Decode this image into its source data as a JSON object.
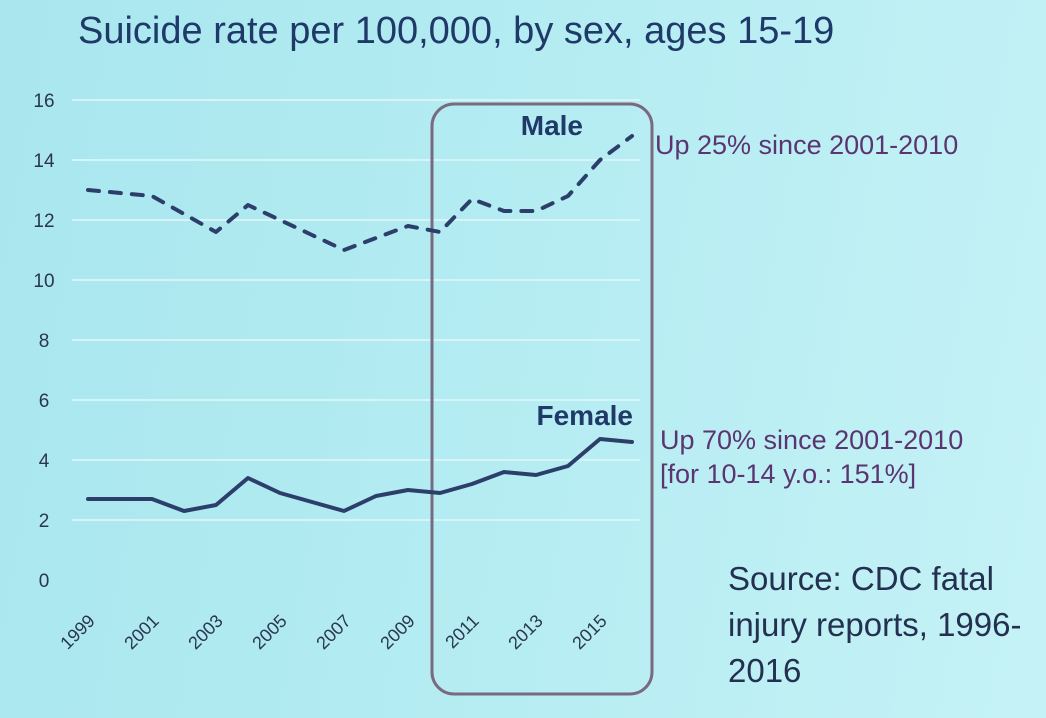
{
  "chart_data": {
    "type": "line",
    "title": "Suicide rate per 100,000, by sex, ages 15-19",
    "xlabel": "",
    "ylabel": "",
    "ylim": [
      0,
      16
    ],
    "yticks": [
      "0",
      "2",
      "4",
      "6",
      "8",
      "10",
      "12",
      "14",
      "16"
    ],
    "xticks": [
      "1999",
      "2001",
      "2003",
      "2005",
      "2007",
      "2009",
      "2011",
      "2013",
      "2015"
    ],
    "x": [
      1999,
      2000,
      2001,
      2002,
      2003,
      2004,
      2005,
      2006,
      2007,
      2008,
      2009,
      2010,
      2011,
      2012,
      2013,
      2014,
      2015,
      2016
    ],
    "grid": true,
    "series": [
      {
        "name": "Male",
        "style": "dashed",
        "values": [
          13.0,
          12.9,
          12.8,
          12.2,
          11.6,
          12.5,
          12.0,
          11.5,
          11.0,
          11.4,
          11.8,
          11.6,
          12.7,
          12.3,
          12.3,
          12.8,
          14.0,
          14.8
        ]
      },
      {
        "name": "Female",
        "style": "solid",
        "values": [
          2.7,
          2.7,
          2.7,
          2.3,
          2.5,
          3.4,
          2.9,
          2.6,
          2.3,
          2.8,
          3.0,
          2.9,
          3.2,
          3.6,
          3.5,
          3.8,
          4.7,
          4.6
        ]
      }
    ],
    "highlight_range": [
      2010,
      2016
    ],
    "annotations": {
      "male": "Up 25% since 2001-2010",
      "female_line1": "Up 70% since 2001-2010",
      "female_line2": "[for 10-14 y.o.: 151%]",
      "source": "Source: CDC fatal injury reports, 1996-2016"
    },
    "colors": {
      "line": "#2c3f6b",
      "grid": "#d6f4f7",
      "highlight_box": "#7a6a80",
      "annotation": "#5b3570"
    }
  }
}
